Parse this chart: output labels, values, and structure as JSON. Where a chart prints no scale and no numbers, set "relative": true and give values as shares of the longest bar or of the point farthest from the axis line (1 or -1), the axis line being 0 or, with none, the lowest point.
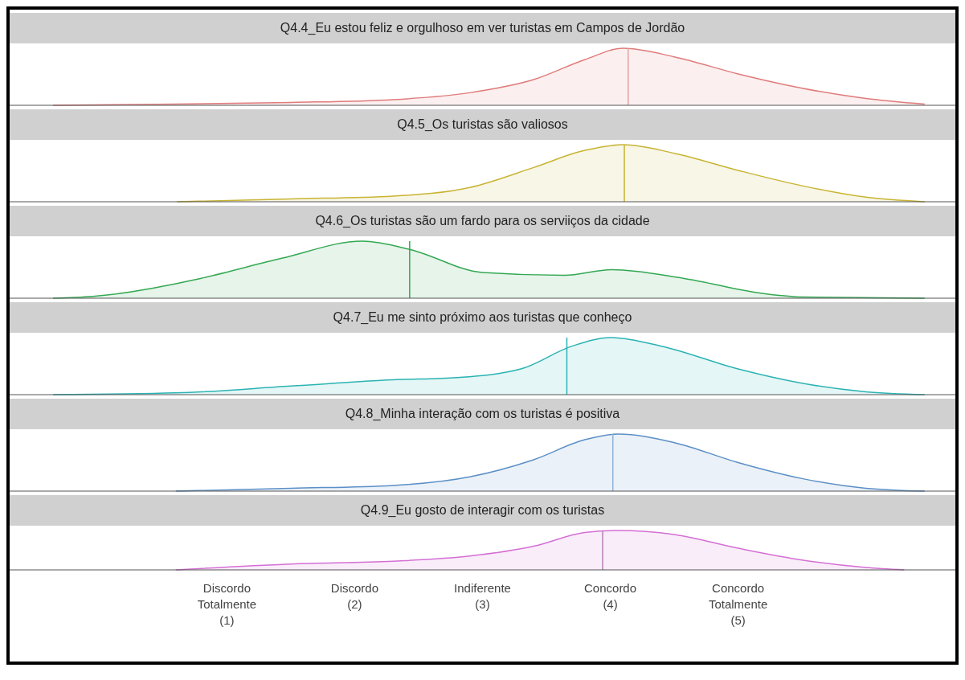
{
  "chart_data": [
    {
      "type": "area",
      "title": "Q4.4_Eu estou feliz e orgulhoso em ver turistas em Campos de Jordão",
      "relative": true,
      "xlim": [
        -0.7,
        6.7
      ],
      "tick_labels": false,
      "x": [
        -0.36,
        0.6,
        1.5,
        2.3,
        2.9,
        3.4,
        3.8,
        4.1,
        4.5,
        5.0,
        5.5,
        6.0,
        6.46
      ],
      "series": [
        {
          "color": "#e07b7b",
          "values": [
            0,
            0.02,
            0.05,
            0.1,
            0.22,
            0.45,
            0.8,
            1,
            0.85,
            0.55,
            0.3,
            0.12,
            0.02
          ]
        }
      ],
      "ref_lines": [
        {
          "axis": "x",
          "value": 4.14,
          "color": "#e3a3a3"
        }
      ]
    },
    {
      "type": "area",
      "title": "Q4.5_Os turistas são valiosos",
      "relative": true,
      "xlim": [
        -0.7,
        6.7
      ],
      "tick_labels": false,
      "x": [
        0.61,
        1.5,
        2.3,
        2.9,
        3.4,
        3.8,
        4.1,
        4.5,
        5.0,
        5.5,
        6.0,
        6.46
      ],
      "series": [
        {
          "color": "#c8b432",
          "values": [
            0,
            0.05,
            0.1,
            0.25,
            0.6,
            0.9,
            1,
            0.85,
            0.55,
            0.28,
            0.08,
            0
          ]
        }
      ],
      "ref_lines": [
        {
          "axis": "x",
          "value": 4.11,
          "color": "#c8b432"
        }
      ]
    },
    {
      "type": "area",
      "title": "Q4.6_Os turistas são um fardo para os serviiços da cidade",
      "relative": true,
      "xlim": [
        -0.7,
        6.7
      ],
      "tick_labels": false,
      "x": [
        -0.36,
        -0.05,
        0.8,
        1.43,
        2.06,
        2.44,
        3.0,
        3.64,
        4.01,
        4.57,
        5.2,
        5.5,
        6.46
      ],
      "series": [
        {
          "color": "#33a852",
          "values": [
            0,
            0.03,
            0.35,
            0.7,
            1,
            0.85,
            0.45,
            0.4,
            0.5,
            0.35,
            0.08,
            0.02,
            0
          ]
        }
      ],
      "ref_lines": [
        {
          "axis": "x",
          "value": 2.43,
          "color": "#33a852"
        }
      ]
    },
    {
      "type": "area",
      "title": "Q4.7_Eu me sinto próximo aos turistas que conheço",
      "relative": true,
      "xlim": [
        -0.7,
        6.7
      ],
      "tick_labels": false,
      "x": [
        -0.36,
        0.6,
        1.5,
        2.3,
        2.8,
        3.3,
        3.7,
        4.0,
        4.4,
        5.0,
        5.5,
        6.0,
        6.46
      ],
      "series": [
        {
          "color": "#2bb3b3",
          "values": [
            0,
            0.03,
            0.15,
            0.26,
            0.3,
            0.45,
            0.85,
            1,
            0.85,
            0.45,
            0.2,
            0.05,
            0
          ]
        }
      ],
      "ref_lines": [
        {
          "axis": "x",
          "value": 3.66,
          "color": "#2bb3b3"
        }
      ]
    },
    {
      "type": "area",
      "title": "Q4.8_Minha interação com os turistas é positiva",
      "relative": true,
      "xlim": [
        -0.7,
        6.7
      ],
      "tick_labels": false,
      "x": [
        0.6,
        1.5,
        2.3,
        2.9,
        3.4,
        3.8,
        4.06,
        4.5,
        5.0,
        5.5,
        6.0,
        6.46
      ],
      "series": [
        {
          "color": "#5b8fc7",
          "values": [
            0,
            0.05,
            0.1,
            0.25,
            0.55,
            0.9,
            1,
            0.85,
            0.5,
            0.22,
            0.05,
            0
          ]
        }
      ],
      "ref_lines": [
        {
          "axis": "x",
          "value": 4.02,
          "color": "#8fb3d9"
        }
      ]
    },
    {
      "type": "area",
      "title": "Q4.9_Eu gosto de interagir com os turistas",
      "relative": true,
      "xlim": [
        -0.7,
        6.7
      ],
      "tick_labels": "x",
      "x": [
        0.6,
        1.5,
        2.3,
        2.9,
        3.4,
        3.8,
        4.06,
        4.5,
        5.0,
        5.5,
        6.0,
        6.3
      ],
      "series": [
        {
          "color": "#d46fd4",
          "values": [
            0,
            0.15,
            0.22,
            0.35,
            0.6,
            0.95,
            1,
            0.9,
            0.55,
            0.25,
            0.06,
            0
          ]
        }
      ],
      "ref_lines": [
        {
          "axis": "x",
          "value": 3.94,
          "color": "#b57fb5"
        }
      ],
      "xticks": [
        {
          "value": 1,
          "label": "Discordo\nTotalmente\n(1)"
        },
        {
          "value": 2,
          "label": "Discordo\n(2)"
        },
        {
          "value": 3,
          "label": "Indiferente\n(3)"
        },
        {
          "value": 4,
          "label": "Concordo\n(4)"
        },
        {
          "value": 5,
          "label": "Concordo\nTotalmente\n(5)"
        }
      ]
    }
  ]
}
